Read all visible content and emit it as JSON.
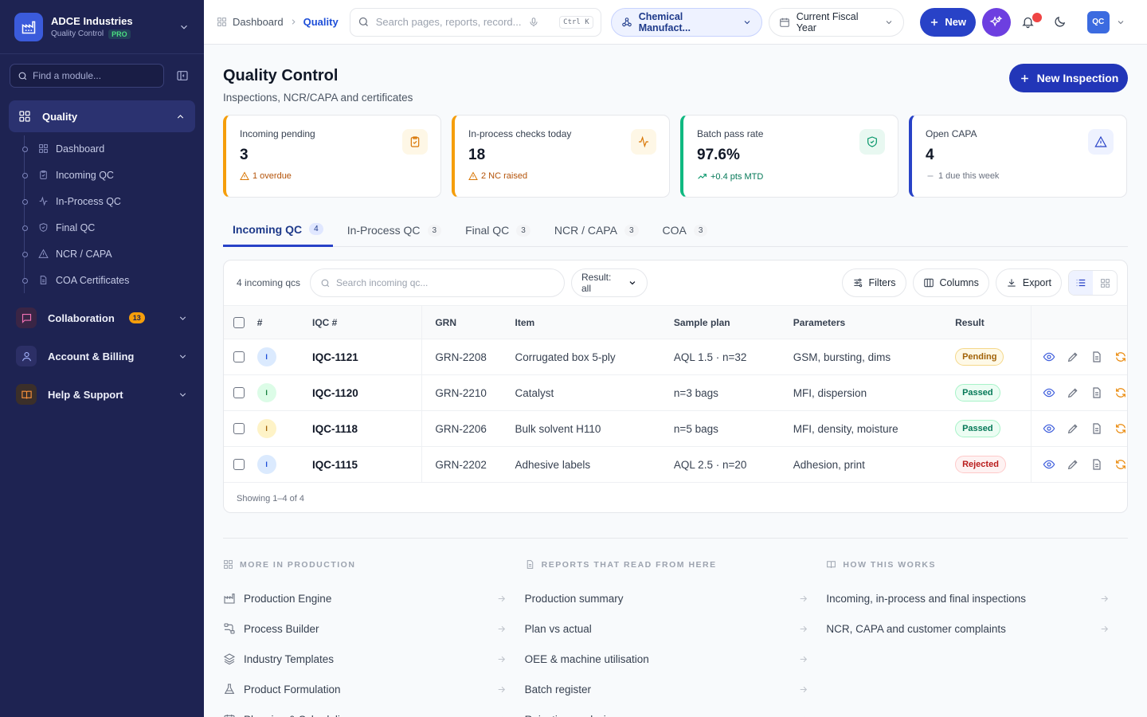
{
  "sidebar": {
    "org_name": "ADCE Industries",
    "org_sub": "Quality Control",
    "plan_badge": "PRO",
    "find_placeholder": "Find a module...",
    "group": "Quality",
    "items": [
      {
        "label": "Dashboard",
        "icon": "grid-icon"
      },
      {
        "label": "Incoming QC",
        "icon": "clipboard-icon"
      },
      {
        "label": "In-Process QC",
        "icon": "pulse-icon"
      },
      {
        "label": "Final QC",
        "icon": "shield-check-icon"
      },
      {
        "label": "NCR / CAPA",
        "icon": "warning-icon"
      },
      {
        "label": "COA Certificates",
        "icon": "document-icon"
      }
    ],
    "sections": [
      {
        "label": "Collaboration",
        "badge": "13"
      },
      {
        "label": "Account & Billing"
      },
      {
        "label": "Help & Support"
      }
    ]
  },
  "topbar": {
    "breadcrumb_root": "Dashboard",
    "breadcrumb_current": "Quality",
    "search_placeholder": "Search pages, reports, record...",
    "shortcut": "Ctrl K",
    "industry": "Chemical Manufact...",
    "period": "Current Fiscal Year",
    "new_label": "New",
    "avatar": "QC"
  },
  "page": {
    "title": "Quality Control",
    "subtitle": "Inspections, NCR/CAPA and certificates",
    "new_inspection": "New Inspection"
  },
  "kpis": [
    {
      "label": "Incoming pending",
      "value": "3",
      "sub": "1 overdue",
      "color": "#f59e0b",
      "sub_color": "#b45309"
    },
    {
      "label": "In-process checks today",
      "value": "18",
      "sub": "2 NC raised",
      "color": "#f59e0b",
      "sub_color": "#b45309"
    },
    {
      "label": "Batch pass rate",
      "value": "97.6%",
      "sub": "+0.4 pts MTD",
      "color": "#10b981",
      "sub_color": "#047857"
    },
    {
      "label": "Open CAPA",
      "value": "4",
      "sub": "1 due this week",
      "color": "#2842c7",
      "sub_color": "#6b7280"
    }
  ],
  "tabs": [
    {
      "label": "Incoming QC",
      "count": "4"
    },
    {
      "label": "In-Process QC",
      "count": "3"
    },
    {
      "label": "Final QC",
      "count": "3"
    },
    {
      "label": "NCR / CAPA",
      "count": "3"
    },
    {
      "label": "COA",
      "count": "3"
    }
  ],
  "table": {
    "count_label": "4 incoming qcs",
    "search_placeholder": "Search incoming qc...",
    "result_filter": "Result: all",
    "filters": "Filters",
    "columns_btn": "Columns",
    "export": "Export",
    "headers": [
      "#",
      "IQC #",
      "GRN",
      "Item",
      "Sample plan",
      "Parameters",
      "Result"
    ],
    "rows": [
      {
        "marker": "I",
        "marker_color": "#dbeafe",
        "marker_text": "#1d4ed8",
        "iqc": "IQC-1121",
        "grn": "GRN-2208",
        "item": "Corrugated box 5-ply",
        "plan": "AQL 1.5 · n=32",
        "params": "GSM, bursting, dims",
        "result": "Pending",
        "rbg": "#fef9e7",
        "rfg": "#a16207",
        "rbd": "#f5d88a"
      },
      {
        "marker": "I",
        "marker_color": "#dcfce7",
        "marker_text": "#15803d",
        "iqc": "IQC-1120",
        "grn": "GRN-2210",
        "item": "Catalyst",
        "plan": "n=3 bags",
        "params": "MFI, dispersion",
        "result": "Passed",
        "rbg": "#ecfdf3",
        "rfg": "#047857",
        "rbd": "#a7f3c8"
      },
      {
        "marker": "I",
        "marker_color": "#fef3c7",
        "marker_text": "#a16207",
        "iqc": "IQC-1118",
        "grn": "GRN-2206",
        "item": "Bulk solvent H110",
        "plan": "n=5 bags",
        "params": "MFI, density, moisture",
        "result": "Passed",
        "rbg": "#ecfdf3",
        "rfg": "#047857",
        "rbd": "#a7f3c8"
      },
      {
        "marker": "I",
        "marker_color": "#dbeafe",
        "marker_text": "#1d4ed8",
        "iqc": "IQC-1115",
        "grn": "GRN-2202",
        "item": "Adhesive labels",
        "plan": "AQL 2.5 · n=20",
        "params": "Adhesion, print",
        "result": "Rejected",
        "rbg": "#fef2f2",
        "rfg": "#b91c1c",
        "rbd": "#fecaca"
      }
    ],
    "footer": "Showing 1–4 of 4"
  },
  "more": [
    {
      "heading": "MORE IN PRODUCTION",
      "items": [
        {
          "label": "Production Engine",
          "icon": "factory-icon"
        },
        {
          "label": "Process Builder",
          "icon": "flow-icon"
        },
        {
          "label": "Industry Templates",
          "icon": "layers-icon"
        },
        {
          "label": "Product Formulation",
          "icon": "flask-icon"
        },
        {
          "label": "Planning & Scheduling",
          "icon": "calendar-icon"
        }
      ]
    },
    {
      "heading": "REPORTS THAT READ FROM HERE",
      "items": [
        {
          "label": "Production summary"
        },
        {
          "label": "Plan vs actual"
        },
        {
          "label": "OEE & machine utilisation"
        },
        {
          "label": "Batch register"
        },
        {
          "label": "Rejection analysis"
        }
      ]
    },
    {
      "heading": "HOW THIS WORKS",
      "items": [
        {
          "label": "Incoming, in-process and final inspections"
        },
        {
          "label": "NCR, CAPA and customer complaints"
        }
      ]
    }
  ]
}
